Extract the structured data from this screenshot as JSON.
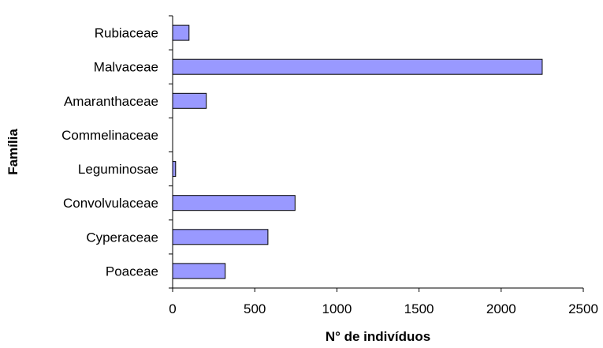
{
  "chart_data": {
    "type": "bar",
    "orientation": "horizontal",
    "categories": [
      "Poaceae",
      "Cyperaceae",
      "Convolvulaceae",
      "Leguminosae",
      "Commelinaceae",
      "Amaranthaceae",
      "Malvaceae",
      "Rubiaceae"
    ],
    "values": [
      320,
      580,
      745,
      18,
      0,
      205,
      2250,
      100
    ],
    "xlabel": "N° de indivíduos",
    "ylabel": "Família",
    "xlim": [
      0,
      2500
    ],
    "xticks": [
      "0",
      "500",
      "1000",
      "1500",
      "2000",
      "2500"
    ],
    "grid": false,
    "legend": false,
    "bar_color": "#9999ff",
    "bar_edge_color": "#000000"
  }
}
